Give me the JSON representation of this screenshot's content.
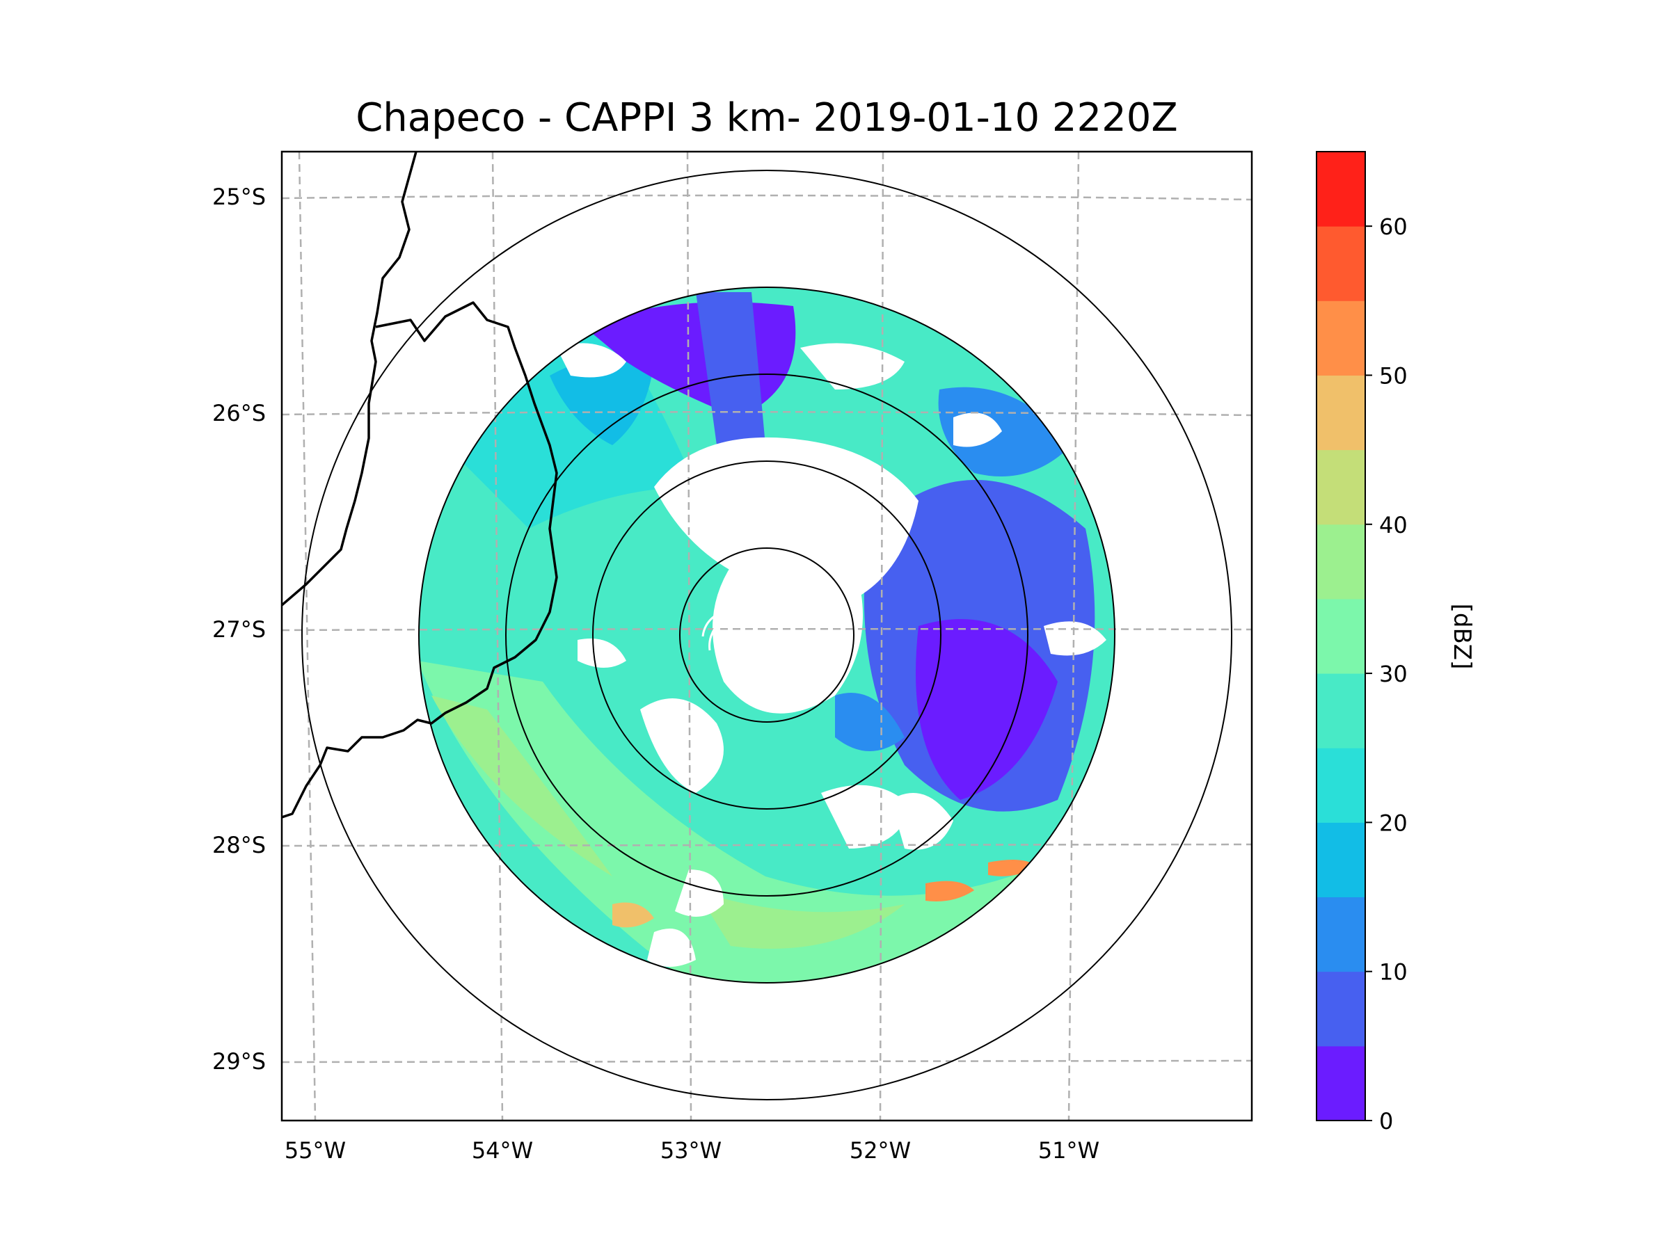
{
  "title": "Chapeco - CAPPI 3 km- 2019-01-10 2220Z",
  "colorbar": {
    "label": "[dBZ]",
    "ticks": [
      "0",
      "10",
      "20",
      "30",
      "40",
      "50",
      "60"
    ],
    "bins": [
      0,
      5,
      10,
      15,
      20,
      25,
      30,
      35,
      40,
      45,
      50,
      55,
      60,
      65
    ],
    "colors": [
      "#6b1cff",
      "#4760f0",
      "#2a8df0",
      "#12bde6",
      "#2adfd8",
      "#48eac6",
      "#7cf7ab",
      "#9cf08f",
      "#c4de78",
      "#f0c06a",
      "#ff8f48",
      "#ff5a2f",
      "#ff2119"
    ]
  },
  "axes": {
    "lat_labels": [
      "25°S",
      "26°S",
      "27°S",
      "28°S",
      "29°S"
    ],
    "lon_labels": [
      "55°W",
      "54°W",
      "53°W",
      "52°W",
      "51°W"
    ]
  },
  "radar": {
    "site": "Chapeco",
    "center_lon": -52.6,
    "center_lat": -27.0,
    "range_rings_km": [
      50,
      100,
      150,
      200,
      250
    ],
    "data_range_km": 200
  }
}
